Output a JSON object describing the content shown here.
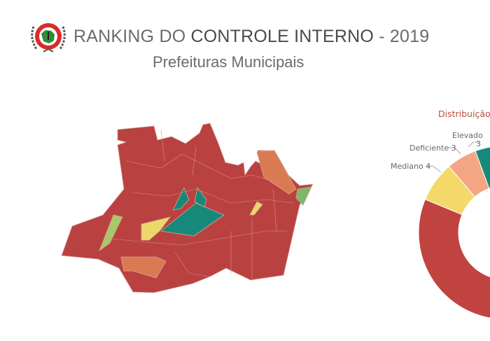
{
  "header": {
    "title_prefix": "RANKING DO ",
    "title_bold": "CONTROLE INTERNO",
    "title_suffix": " - 2019",
    "subtitle": "Prefeituras Municipais"
  },
  "logo": {
    "text": "Tribunal de Contas do Estado do Amazonas"
  },
  "map": {
    "colors": {
      "critico": "#b94240",
      "elevado": "#17897a",
      "mediano": "#ecd86a",
      "deficiente": "#d97a50",
      "light_green": "#a6c96a",
      "green": "#7cb86a",
      "border": "#d9a09a"
    }
  },
  "chart_data": {
    "type": "pie",
    "donut": true,
    "title": "Distribuição p",
    "segments": [
      {
        "label": "Elevado",
        "value": 3,
        "color": "#17897a"
      },
      {
        "label": "Deficiente",
        "value": 3,
        "color": "#f4a582"
      },
      {
        "label": "Mediano",
        "value": 4,
        "color": "#f4d96a"
      },
      {
        "label": "",
        "value": null,
        "color": "#c0433f"
      }
    ],
    "labels": {
      "elevado": "Elevado",
      "elevado_value": "3",
      "deficiente": "Deficiente 3",
      "mediano": "Mediano 4"
    }
  }
}
